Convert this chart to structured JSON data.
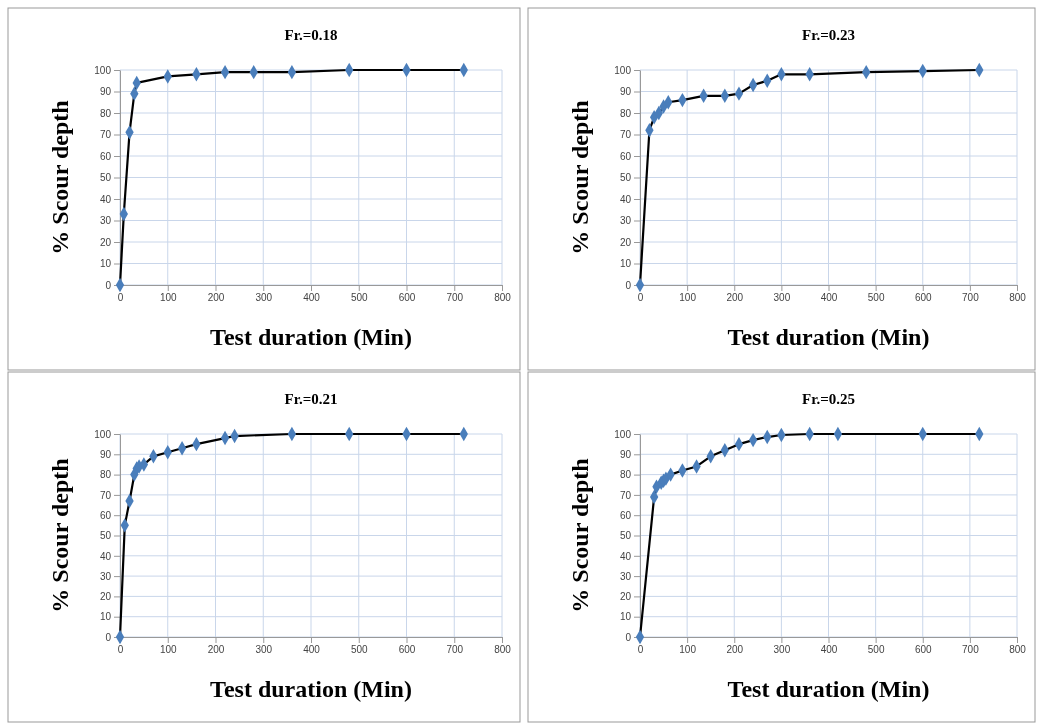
{
  "chart_data": [
    {
      "type": "line",
      "title": "Fr.=0.18",
      "xlabel": "Test duration (Min)",
      "ylabel": "% Scour depth",
      "x": [
        0,
        8,
        20,
        30,
        35,
        100,
        160,
        220,
        280,
        360,
        480,
        600,
        720
      ],
      "series": [
        {
          "color": "#4a7ebb",
          "values": [
            0,
            33,
            71,
            89,
            94,
            97,
            98,
            99,
            99,
            99,
            100,
            100,
            100
          ]
        }
      ],
      "xlim": [
        0,
        800
      ],
      "ylim": [
        0,
        100
      ],
      "xticks": [
        0,
        100,
        200,
        300,
        400,
        500,
        600,
        700,
        800
      ],
      "yticks": [
        0,
        10,
        20,
        30,
        40,
        50,
        60,
        70,
        80,
        90,
        100
      ],
      "grid": true,
      "marker": "diamond",
      "line_style": "solid"
    },
    {
      "type": "line",
      "title": "Fr.=0.23",
      "xlabel": "Test duration (Min)",
      "ylabel": "% Scour depth",
      "x": [
        0,
        20,
        30,
        40,
        50,
        60,
        90,
        135,
        180,
        210,
        240,
        270,
        300,
        360,
        480,
        600,
        720
      ],
      "series": [
        {
          "color": "#4a7ebb",
          "values": [
            0,
            72,
            78,
            80,
            83,
            85,
            86,
            88,
            88,
            89,
            93,
            95,
            98,
            98,
            99,
            99.5,
            100
          ]
        }
      ],
      "xlim": [
        0,
        800
      ],
      "ylim": [
        0,
        100
      ],
      "xticks": [
        0,
        100,
        200,
        300,
        400,
        500,
        600,
        700,
        800
      ],
      "yticks": [
        0,
        10,
        20,
        30,
        40,
        50,
        60,
        70,
        80,
        90,
        100
      ],
      "grid": true,
      "marker": "diamond",
      "line_style": "solid"
    },
    {
      "type": "line",
      "title": "Fr.=0.21",
      "xlabel": "Test duration (Min)",
      "ylabel": "% Scour depth",
      "x": [
        0,
        10,
        20,
        30,
        35,
        40,
        50,
        70,
        100,
        130,
        160,
        220,
        240,
        360,
        480,
        600,
        720
      ],
      "series": [
        {
          "color": "#4a7ebb",
          "values": [
            0,
            55,
            67,
            80,
            83,
            84,
            85,
            89,
            91,
            93,
            95,
            98,
            99,
            100,
            100,
            100,
            100
          ]
        }
      ],
      "xlim": [
        0,
        800
      ],
      "ylim": [
        0,
        100
      ],
      "xticks": [
        0,
        100,
        200,
        300,
        400,
        500,
        600,
        700,
        800
      ],
      "yticks": [
        0,
        10,
        20,
        30,
        40,
        50,
        60,
        70,
        80,
        90,
        100
      ],
      "grid": true,
      "marker": "diamond",
      "line_style": "solid"
    },
    {
      "type": "line",
      "title": "Fr.=0.25",
      "xlabel": "Test duration (Min)",
      "ylabel": "% Scour depth",
      "x": [
        0,
        30,
        35,
        45,
        50,
        55,
        65,
        90,
        120,
        150,
        180,
        210,
        240,
        270,
        300,
        360,
        420,
        600,
        720
      ],
      "series": [
        {
          "color": "#4a7ebb",
          "values": [
            0,
            69,
            74,
            76,
            77,
            78,
            80,
            82,
            84,
            89,
            92,
            95,
            97,
            98.5,
            99.5,
            100,
            100,
            100,
            100
          ]
        }
      ],
      "xlim": [
        0,
        800
      ],
      "ylim": [
        0,
        100
      ],
      "xticks": [
        0,
        100,
        200,
        300,
        400,
        500,
        600,
        700,
        800
      ],
      "yticks": [
        0,
        10,
        20,
        30,
        40,
        50,
        60,
        70,
        80,
        90,
        100
      ],
      "grid": true,
      "marker": "diamond",
      "line_style": "solid"
    }
  ]
}
